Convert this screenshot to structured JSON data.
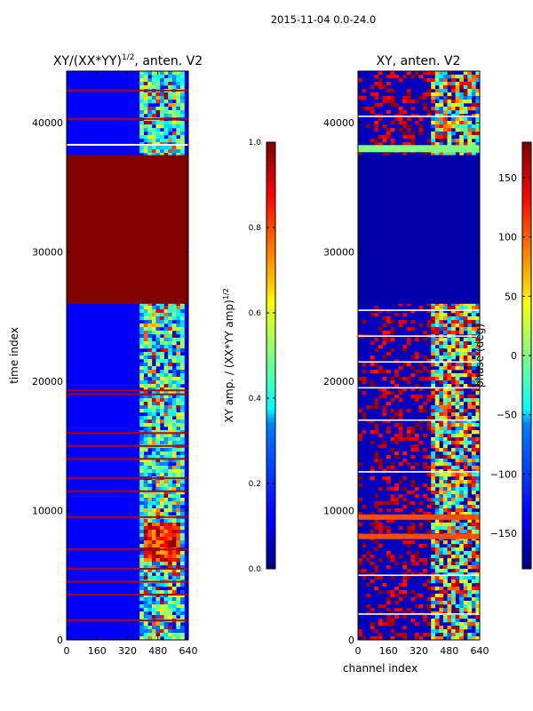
{
  "figure_title": "2015-11-04 0.0-24.0",
  "chart_data": [
    {
      "type": "heatmap",
      "title": "XY/(XX*YY)^{1/2}, anten. V2",
      "title_main": "XY/(XX*YY)",
      "title_exp": "1/2",
      "title_suffix": ", anten. V2",
      "xlabel": "",
      "ylabel": "time index",
      "x_ticks": [
        0,
        160,
        320,
        480,
        640
      ],
      "y_ticks": [
        0,
        10000,
        20000,
        30000,
        40000
      ],
      "xlim": [
        0,
        640
      ],
      "ylim": [
        0,
        44000
      ],
      "colorbar": {
        "label": "XY amp. / (XX*YY amp)^{1/2}",
        "label_main": "XY amp. / (XX*YY amp)",
        "label_exp": "1/2",
        "ticks": [
          "0.0",
          "0.2",
          "0.4",
          "0.6",
          "0.8",
          "1.0"
        ],
        "range": [
          0.0,
          1.0
        ]
      },
      "saturated_block_rows": [
        26000,
        37500
      ],
      "flagged_rows": [
        1500,
        3500,
        4500,
        5500,
        7000,
        9500,
        11500,
        12500,
        14000,
        15000,
        16000,
        19000,
        19300,
        42500,
        40300
      ]
    },
    {
      "type": "heatmap",
      "title": "XY, anten. V2",
      "xlabel": "channel index",
      "ylabel": "",
      "x_ticks": [
        0,
        160,
        320,
        480,
        640
      ],
      "y_ticks": [
        0,
        10000,
        20000,
        30000,
        40000
      ],
      "xlim": [
        0,
        640
      ],
      "ylim": [
        0,
        44000
      ],
      "colorbar": {
        "label": "phase (deg)",
        "ticks": [
          "150",
          "100",
          "50",
          "0",
          "−50",
          "−100",
          "−150"
        ],
        "range": [
          -180,
          180
        ]
      },
      "constant_block_rows": [
        26000,
        37500
      ]
    }
  ]
}
